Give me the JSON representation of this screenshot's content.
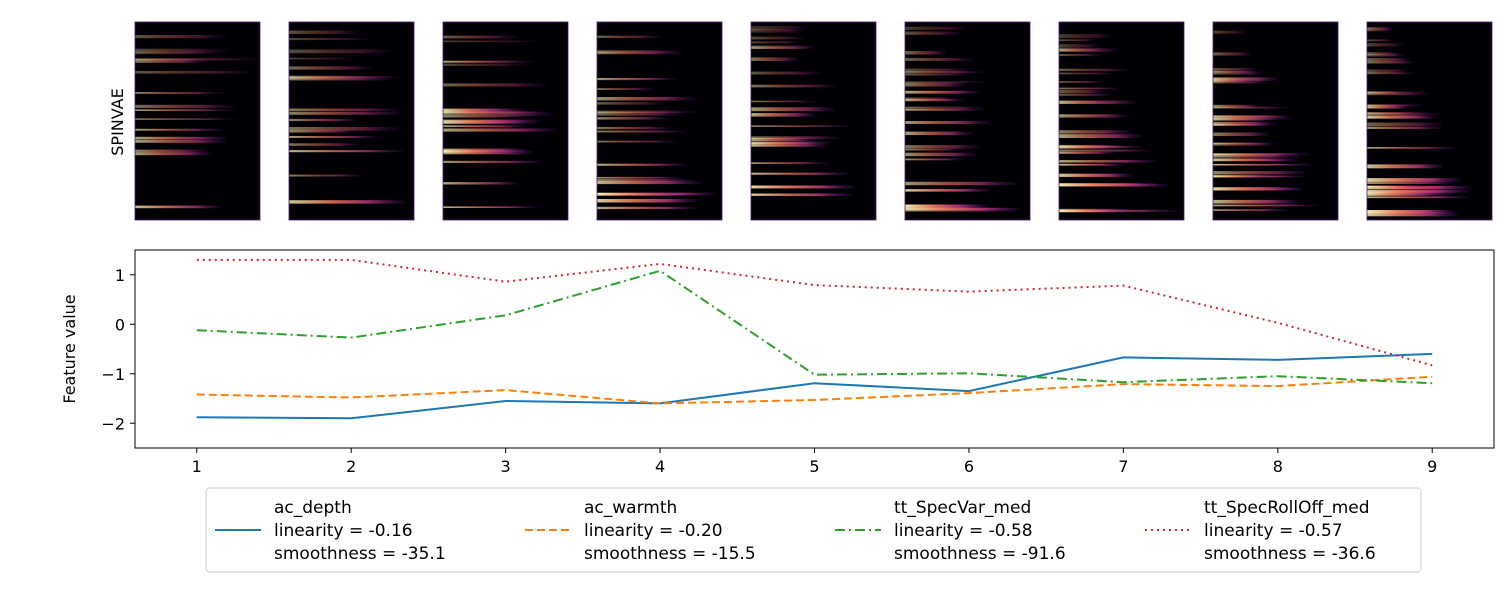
{
  "figure": {
    "row_label": "SPINVAE",
    "spectrogram_count": 9
  },
  "chart_data": {
    "type": "line",
    "ylabel": "Feature value",
    "xlabel": "",
    "x": [
      1,
      2,
      3,
      4,
      5,
      6,
      7,
      8,
      9
    ],
    "xlim": [
      0.6,
      9.4
    ],
    "ylim": [
      -2.5,
      1.5
    ],
    "yticks": [
      -2,
      -1,
      0,
      1
    ],
    "grid": false,
    "legend_position": "bottom",
    "series": [
      {
        "name": "ac_depth",
        "linearity": "linearity = -0.16",
        "smoothness": "smoothness = -35.1",
        "color": "#1f77b4",
        "style": "solid",
        "values": [
          -1.88,
          -1.9,
          -1.55,
          -1.6,
          -1.19,
          -1.35,
          -0.67,
          -0.72,
          -0.6
        ]
      },
      {
        "name": "ac_warmth",
        "linearity": "linearity = -0.20",
        "smoothness": "smoothness = -15.5",
        "color": "#ff7f0e",
        "style": "dashed",
        "values": [
          -1.42,
          -1.48,
          -1.33,
          -1.6,
          -1.53,
          -1.39,
          -1.21,
          -1.25,
          -1.06
        ]
      },
      {
        "name": "tt_SpecVar_med",
        "linearity": "linearity = -0.58",
        "smoothness": "smoothness = -91.6",
        "color": "#2ca02c",
        "style": "dashdot",
        "values": [
          -0.12,
          -0.27,
          0.18,
          1.08,
          -1.02,
          -0.99,
          -1.17,
          -1.05,
          -1.19
        ]
      },
      {
        "name": "tt_SpecRollOff_med",
        "linearity": "linearity = -0.57",
        "smoothness": "smoothness = -36.6",
        "color": "#d62728",
        "style": "dotted",
        "values": [
          1.3,
          1.3,
          0.86,
          1.22,
          0.79,
          0.66,
          0.78,
          0.03,
          -0.83
        ]
      }
    ]
  }
}
